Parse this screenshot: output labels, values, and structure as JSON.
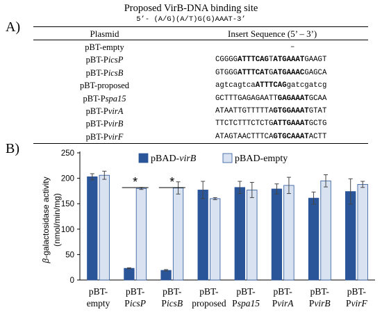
{
  "panelA": {
    "label": "A)",
    "proposed_title": "Proposed VirB-DNA binding site",
    "proposed_sequence": "5’- (A/G)(A/T)G(G)AAAT-3’",
    "header_plasmid": "Plasmid",
    "header_insert": "Insert Sequence (5’ – 3’)",
    "rows": [
      {
        "plasmid_pre": "pBT-empty",
        "plasmid_it": "",
        "seq": [
          {
            "t": "–",
            "b": false
          }
        ]
      },
      {
        "plasmid_pre": "pBT-P",
        "plasmid_it": "icsP",
        "seq": [
          {
            "t": "CGGGG",
            "b": false
          },
          {
            "t": "ATTTCAG",
            "b": true
          },
          {
            "t": "T",
            "b": false
          },
          {
            "t": "ATGAAAT",
            "b": true
          },
          {
            "t": "GAAGT",
            "b": false
          }
        ]
      },
      {
        "plasmid_pre": "pBT-P",
        "plasmid_it": "icsB",
        "seq": [
          {
            "t": "GTGGG",
            "b": false
          },
          {
            "t": "ATTTCAT",
            "b": true
          },
          {
            "t": "G",
            "b": false
          },
          {
            "t": "ATGAAAC",
            "b": true
          },
          {
            "t": "GAGCA",
            "b": false
          }
        ]
      },
      {
        "plasmid_pre": "pBT-proposed",
        "plasmid_it": "",
        "seq": [
          {
            "t": "agtcagtca",
            "b": false
          },
          {
            "t": "ATTTCAG",
            "b": true
          },
          {
            "t": "gatcgatcg",
            "b": false
          }
        ]
      },
      {
        "plasmid_pre": "pBT-P",
        "plasmid_it": "spa15",
        "seq": [
          {
            "t": "GCTTTGAGAGAATT",
            "b": false
          },
          {
            "t": "GAGAAAT",
            "b": true
          },
          {
            "t": "GCAA",
            "b": false
          }
        ]
      },
      {
        "plasmid_pre": "pBT-P",
        "plasmid_it": "virA",
        "seq": [
          {
            "t": "ATAATTGTTTTTA",
            "b": false
          },
          {
            "t": "GTGGAAAT",
            "b": true
          },
          {
            "t": "GTAT",
            "b": false
          }
        ]
      },
      {
        "plasmid_pre": "pBT-P",
        "plasmid_it": "virB",
        "seq": [
          {
            "t": "TTCTCTTTCTCTG",
            "b": false
          },
          {
            "t": "ATTGAAAT",
            "b": true
          },
          {
            "t": "GCTG",
            "b": false
          }
        ]
      },
      {
        "plasmid_pre": "pBT-P",
        "plasmid_it": "virF",
        "seq": [
          {
            "t": "ATAGTAACTTTCA",
            "b": false
          },
          {
            "t": "GTGCAAAT",
            "b": true
          },
          {
            "t": "ACTT",
            "b": false
          }
        ]
      }
    ]
  },
  "panelB": {
    "label": "B)"
  },
  "colors": {
    "virB": "#2a5599",
    "empty": "#d8e2f1",
    "bar_edge": "#2a5599"
  },
  "chart_data": {
    "type": "bar",
    "ylabel_prefix": "β",
    "ylabel_rest": "-galactosidase activity",
    "ylabel_unit": "(nmol/min/mg)",
    "ylim": [
      0,
      250
    ],
    "yticks": [
      0,
      50,
      100,
      150,
      200,
      250
    ],
    "categories": [
      {
        "line1": "pBT-",
        "line2_pre": "",
        "line2_it": "",
        "line2_plain": "empty"
      },
      {
        "line1": "pBT-",
        "line2_pre": "P",
        "line2_it": "icsP",
        "line2_plain": ""
      },
      {
        "line1": "pBT-",
        "line2_pre": "P",
        "line2_it": "icsB",
        "line2_plain": ""
      },
      {
        "line1": "pBT-",
        "line2_pre": "",
        "line2_it": "",
        "line2_plain": "proposed"
      },
      {
        "line1": "pBT-",
        "line2_pre": "P",
        "line2_it": "spa15",
        "line2_plain": ""
      },
      {
        "line1": "pBT-",
        "line2_pre": "P",
        "line2_it": "virA",
        "line2_plain": ""
      },
      {
        "line1": "pBT-",
        "line2_pre": "P",
        "line2_it": "virB",
        "line2_plain": ""
      },
      {
        "line1": "pBT-",
        "line2_pre": "P",
        "line2_it": "virF",
        "line2_plain": ""
      }
    ],
    "series": [
      {
        "name_pre": "pBAD-",
        "name_it": "virB",
        "key": "virB",
        "values": [
          203,
          23,
          19,
          177,
          182,
          179,
          161,
          174
        ],
        "errors": [
          6,
          1,
          1.5,
          17,
          12,
          10,
          12,
          25
        ]
      },
      {
        "name_pre": "pBAD-empty",
        "name_it": "",
        "key": "empty",
        "values": [
          206,
          180,
          181,
          160,
          177,
          186,
          195,
          188
        ],
        "errors": [
          8,
          2,
          12,
          2,
          15,
          16,
          12,
          6
        ]
      }
    ],
    "significance": [
      {
        "category_index": 1,
        "symbol": "*"
      },
      {
        "category_index": 2,
        "symbol": "*"
      }
    ],
    "legend_position": "top"
  }
}
